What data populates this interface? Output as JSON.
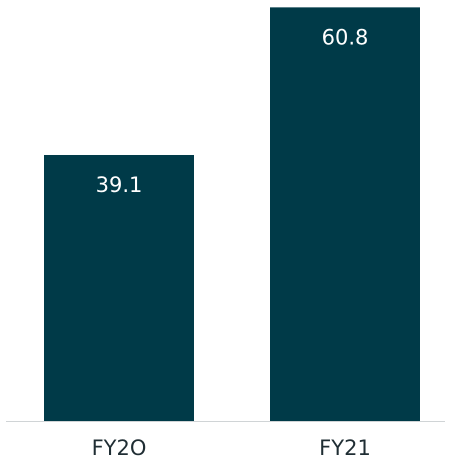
{
  "chart_data": {
    "type": "bar",
    "categories": [
      "FY2O",
      "FY21"
    ],
    "values": [
      39.1,
      60.8
    ],
    "value_labels": [
      "39.1",
      "60.8"
    ],
    "title": "",
    "xlabel": "",
    "ylabel": "",
    "ylim": [
      0,
      61
    ],
    "grid": false,
    "legend": "none",
    "colors": {
      "bar": "#003A48",
      "bar_label": "#FFFFFF",
      "tick_label": "#1F2D33",
      "baseline": "#D0D4D6"
    }
  }
}
